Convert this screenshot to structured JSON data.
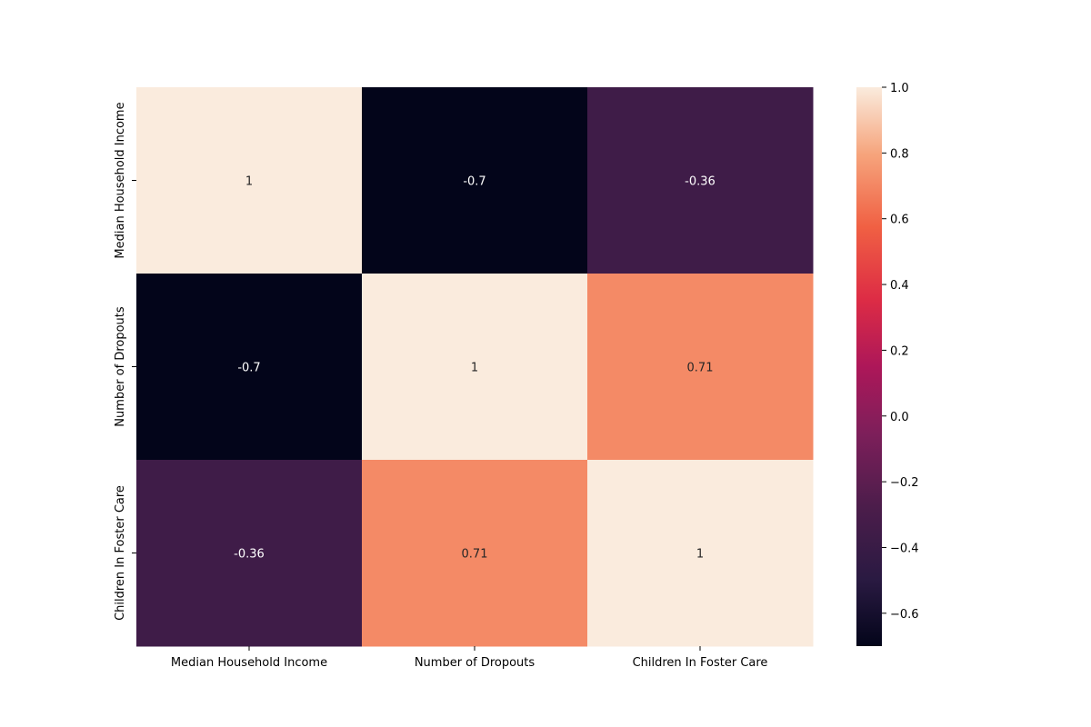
{
  "chart_data": {
    "type": "heatmap",
    "title": "",
    "xlabel": "",
    "ylabel": "",
    "x_categories": [
      "Median Household Income",
      "Number of Dropouts",
      "Children In Foster Care"
    ],
    "y_categories": [
      "Median Household Income",
      "Number of Dropouts",
      "Children In Foster Care"
    ],
    "values": [
      [
        1,
        -0.7,
        -0.36
      ],
      [
        -0.7,
        1,
        0.71
      ],
      [
        -0.36,
        0.71,
        1
      ]
    ],
    "cell_labels": [
      [
        "1",
        "-0.7",
        "-0.36"
      ],
      [
        "-0.7",
        "1",
        "0.71"
      ],
      [
        "-0.36",
        "0.71",
        "1"
      ]
    ],
    "colormap": "rocket",
    "vmin": -0.7,
    "vmax": 1.0,
    "colorbar": {
      "ticks": [
        1.0,
        0.8,
        0.6,
        0.4,
        0.2,
        0.0,
        -0.2,
        -0.4,
        -0.6
      ],
      "tick_labels": [
        "1.0",
        "0.8",
        "0.6",
        "0.4",
        "0.2",
        "0.0",
        "−0.2",
        "−0.4",
        "−0.6"
      ],
      "placement": "right"
    },
    "grid": false
  }
}
